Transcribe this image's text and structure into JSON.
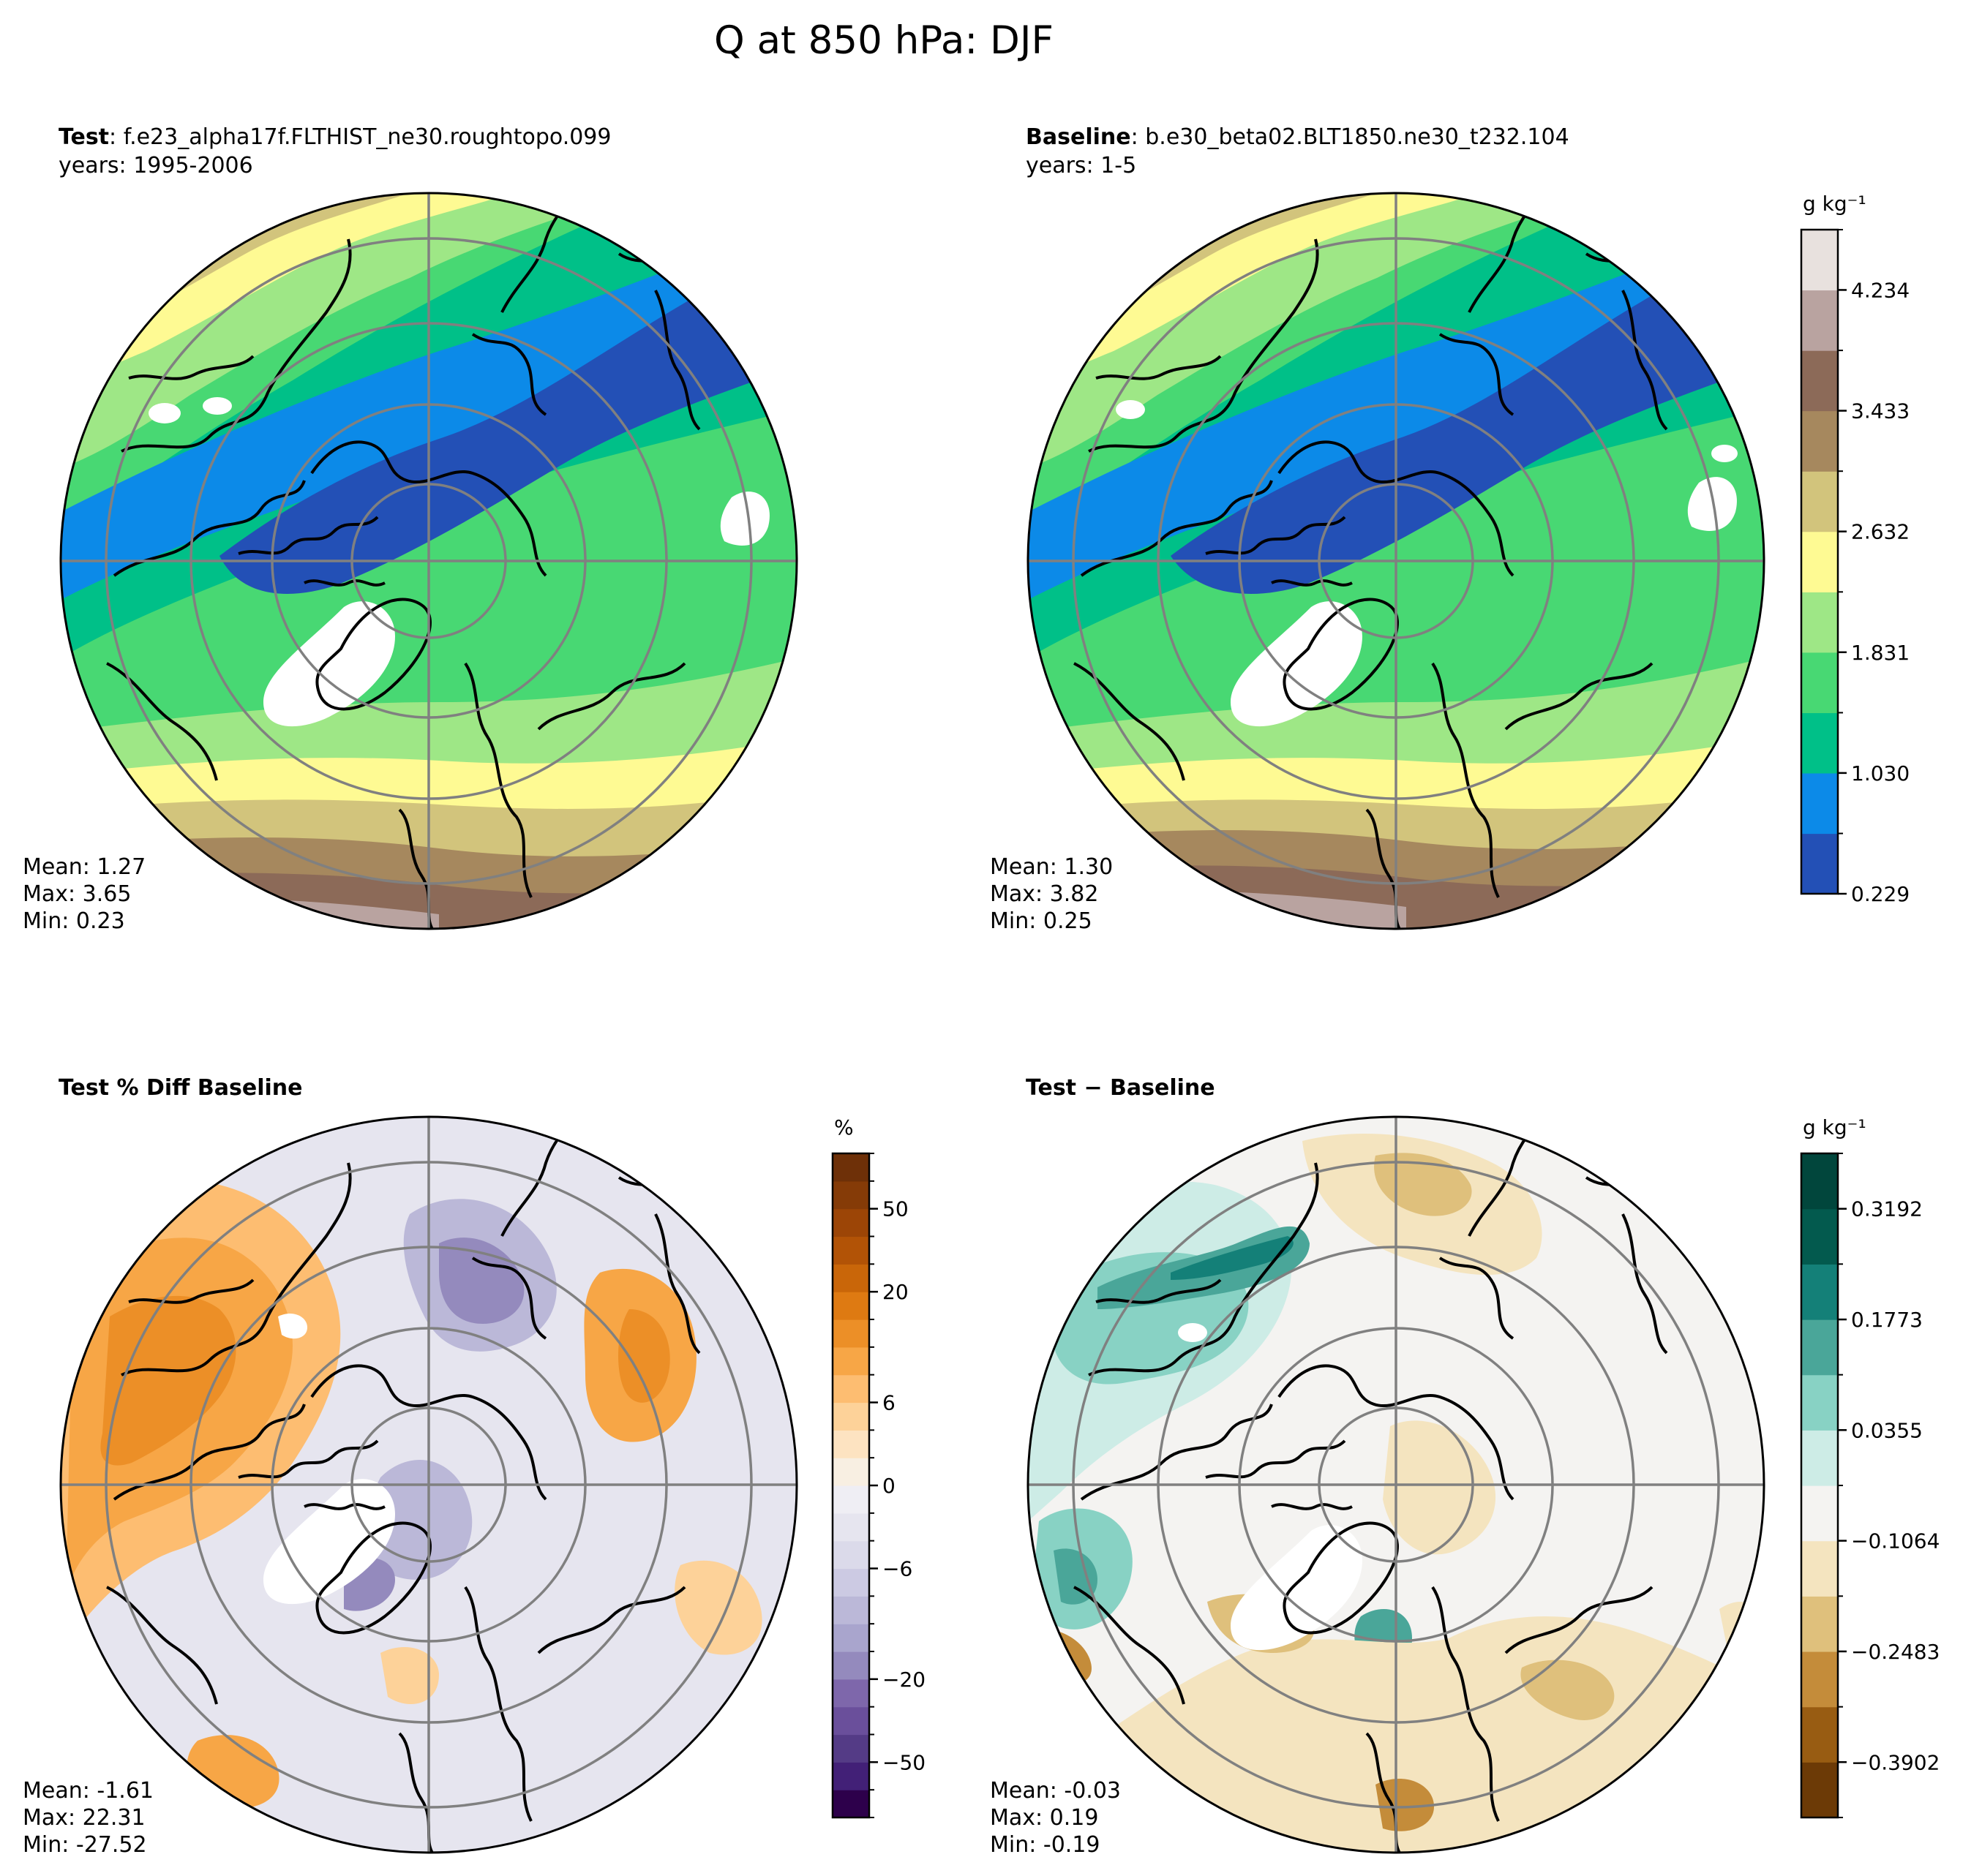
{
  "figure": {
    "title": "Q at 850 hPa: DJF"
  },
  "panels": {
    "test": {
      "label_bold": "Test",
      "label_sep": ": ",
      "case_name": "f.e23_alpha17f.FLTHIST_ne30.roughtopo.099",
      "years": "years: 1995-2006",
      "stats": {
        "mean": "Mean:  1.27",
        "max": "Max:  3.65",
        "min": "Min:  0.23"
      }
    },
    "baseline": {
      "label_bold": "Baseline",
      "label_sep": ": ",
      "case_name": "b.e30_beta02.BLT1850.ne30_t232.104",
      "years": "years: 1-5",
      "stats": {
        "mean": "Mean:  1.30",
        "max": "Max:  3.82",
        "min": "Min:  0.25"
      }
    },
    "pct_diff": {
      "title": "Test % Diff Baseline",
      "stats": {
        "mean": "Mean: -1.61",
        "max": "Max: 22.31",
        "min": "Min: -27.52"
      }
    },
    "diff": {
      "title": "Test − Baseline",
      "stats": {
        "mean": "Mean: -0.03",
        "max": "Max:  0.19",
        "min": "Min: -0.19"
      }
    }
  },
  "chart_data": [
    {
      "type": "heatmap",
      "name": "field-colorbar",
      "projection": "north-polar-stereographic",
      "units": "g kg⁻¹",
      "levels": [
        0.229,
        0.629,
        1.03,
        1.43,
        1.831,
        2.231,
        2.632,
        3.032,
        3.433,
        3.833,
        4.234,
        4.634
      ],
      "colors": [
        "#2350b6",
        "#0c8ae8",
        "#00c088",
        "#48d873",
        "#9ee786",
        "#fefa93",
        "#d2c47c",
        "#a6885e",
        "#8c6a58",
        "#b9a3a0",
        "#e8e1de"
      ],
      "tick_labels": [
        "0.229",
        "1.030",
        "1.831",
        "2.632",
        "3.433",
        "4.234"
      ],
      "tick_values": [
        0.229,
        1.03,
        1.831,
        2.632,
        3.433,
        4.234
      ]
    },
    {
      "type": "heatmap",
      "name": "pct-diff-colorbar",
      "units": "%",
      "levels": [
        -100,
        -70,
        -50,
        -40,
        -30,
        -20,
        -15,
        -10,
        -8,
        -6,
        -4,
        -2,
        0,
        2,
        4,
        6,
        8,
        10,
        15,
        20,
        30,
        40,
        50,
        70,
        100
      ],
      "colors": [
        "#2d004b",
        "#422077",
        "#543b86",
        "#6a4f9b",
        "#7e67ab",
        "#948abd",
        "#a9a5cd",
        "#bbb8d8",
        "#cccae3",
        "#dbdaea",
        "#e6e5ef",
        "#efeef4",
        "#f8efe2",
        "#fde3c1",
        "#fdd299",
        "#fdbd71",
        "#f7a646",
        "#ec8f27",
        "#de7a12",
        "#c96609",
        "#b25306",
        "#9c4506",
        "#853b07",
        "#6e3008"
      ],
      "tick_labels": [
        "50",
        "20",
        "6",
        "0",
        "−6",
        "−20",
        "−50"
      ],
      "tick_values": [
        50,
        20,
        6,
        0,
        -6,
        -20,
        -50
      ]
    },
    {
      "type": "heatmap",
      "name": "diff-colorbar",
      "units": "g kg⁻¹",
      "levels": [
        -0.4612,
        -0.3902,
        -0.3193,
        -0.2483,
        -0.1774,
        -0.1064,
        -0.0355,
        0.0355,
        0.1064,
        0.1773,
        0.2483,
        0.3192,
        0.3902
      ],
      "colors": [
        "#6c3a06",
        "#985c12",
        "#c48c3a",
        "#dfc07c",
        "#f4e4bf",
        "#f4f3f1",
        "#cdece6",
        "#88d2c4",
        "#4aa699",
        "#148078",
        "#035a4e",
        "#01463c"
      ],
      "tick_labels": [
        "0.3192",
        "0.1773",
        "0.0355",
        "−0.1064",
        "−0.2483",
        "−0.3902"
      ],
      "tick_values": [
        0.3192,
        0.1773,
        0.0355,
        -0.1064,
        -0.2483,
        -0.3902
      ]
    }
  ]
}
